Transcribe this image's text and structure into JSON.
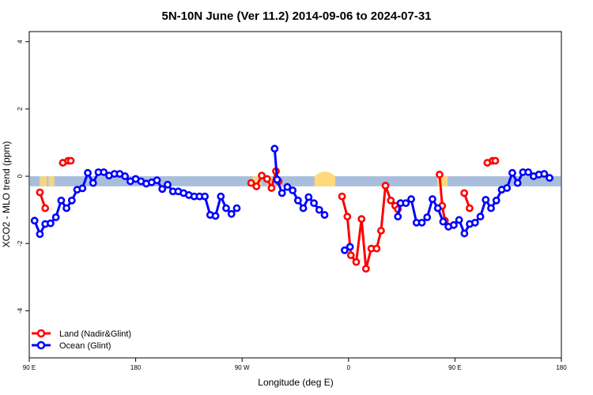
{
  "chart_data": {
    "type": "line",
    "title": "5N-10N June (Ver 11.2)   2014-09-06 to 2024-07-31",
    "xlabel": "Longitude (deg E)",
    "ylabel": "XCO2 - MLO trend (ppm)",
    "xlim": [
      90,
      450
    ],
    "ylim": [
      -5.4,
      4.3
    ],
    "x_ticks": [
      90,
      162,
      234,
      306,
      378,
      450
    ],
    "x_tick_labels": [
      "90 E",
      "180",
      "90 W",
      "0",
      "90 E",
      "180"
    ],
    "y_ticks": [
      -4,
      -2,
      0,
      2,
      4
    ],
    "y_tick_labels": [
      "-4",
      "-2",
      "0",
      "2",
      "4"
    ],
    "band": {
      "ymin": -0.3,
      "ymax": 0.0,
      "ocean_color": "#a8bedc",
      "land_color": "#ffd97a"
    },
    "land_band_ranges": [
      [
        97,
        102
      ],
      [
        103,
        107
      ],
      [
        241,
        247
      ],
      [
        251,
        254
      ],
      [
        283,
        297
      ],
      [
        366,
        373
      ],
      [
        366,
        370
      ],
      [
        372,
        373
      ],
      [
        458,
        461
      ]
    ],
    "legend": {
      "position": "bottom-left",
      "entries": [
        {
          "label": "Land (Nadir&Glint)",
          "color": "#ff0000"
        },
        {
          "label": "Ocean (Glint)",
          "color": "#0000ff"
        }
      ]
    },
    "series": [
      {
        "name": "Land (Nadir&Glint)",
        "color": "#ff0000",
        "segments": [
          [
            [
              97.2,
              -0.48
            ],
            [
              100.8,
              -0.95
            ]
          ],
          [
            [
              112.7,
              0.4
            ],
            [
              116.3,
              0.46
            ],
            [
              118.1,
              0.46
            ]
          ],
          [
            [
              240.1,
              -0.2
            ],
            [
              243.7,
              -0.3
            ],
            [
              247.3,
              0.02
            ],
            [
              250.9,
              -0.08
            ],
            [
              253.9,
              -0.35
            ],
            [
              256.9,
              0.15
            ],
            [
              258.7,
              -0.15
            ]
          ],
          [
            [
              301.6,
              -0.6
            ],
            [
              305.2,
              -1.2
            ],
            [
              307.6,
              -2.35
            ],
            [
              311.2,
              -2.55
            ],
            [
              314.8,
              -1.27
            ],
            [
              317.8,
              -2.75
            ],
            [
              321.4,
              -2.15
            ],
            [
              325.0,
              -2.15
            ],
            [
              328.0,
              -1.62
            ],
            [
              331.0,
              -0.28
            ],
            [
              334.6,
              -0.72
            ],
            [
              337.6,
              -0.88
            ],
            [
              339.4,
              -0.98
            ]
          ],
          [
            [
              367.6,
              0.05
            ],
            [
              369.4,
              -0.88
            ],
            [
              371.2,
              -1.32
            ]
          ],
          [
            [
              384.3,
              -0.5
            ],
            [
              387.9,
              -0.95
            ]
          ],
          [
            [
              399.9,
              0.4
            ],
            [
              403.5,
              0.46
            ],
            [
              405.3,
              0.46
            ]
          ]
        ]
      },
      {
        "name": "Ocean (Glint)",
        "color": "#0000ff",
        "segments": [
          [
            [
              93.6,
              -1.32
            ],
            [
              97.2,
              -1.72
            ],
            [
              100.8,
              -1.42
            ],
            [
              104.4,
              -1.4
            ],
            [
              108.0,
              -1.22
            ],
            [
              111.6,
              -0.72
            ],
            [
              115.2,
              -0.95
            ],
            [
              118.8,
              -0.72
            ],
            [
              122.4,
              -0.4
            ],
            [
              126.0,
              -0.36
            ],
            [
              129.6,
              0.1
            ],
            [
              133.2,
              -0.2
            ],
            [
              136.8,
              0.12
            ],
            [
              140.4,
              0.12
            ],
            [
              144.0,
              0.02
            ],
            [
              147.6,
              0.07
            ],
            [
              151.2,
              0.07
            ],
            [
              154.8,
              0.0
            ],
            [
              158.4,
              -0.15
            ],
            [
              162.0,
              -0.08
            ],
            [
              165.6,
              -0.15
            ],
            [
              169.2,
              -0.22
            ],
            [
              172.8,
              -0.18
            ],
            [
              176.4,
              -0.12
            ],
            [
              180.0,
              -0.38
            ],
            [
              183.6,
              -0.25
            ],
            [
              187.2,
              -0.45
            ],
            [
              190.8,
              -0.45
            ],
            [
              194.4,
              -0.5
            ],
            [
              198.0,
              -0.56
            ],
            [
              201.6,
              -0.6
            ],
            [
              205.2,
              -0.6
            ],
            [
              208.8,
              -0.6
            ],
            [
              212.4,
              -1.15
            ],
            [
              216.0,
              -1.18
            ],
            [
              219.6,
              -0.6
            ],
            [
              223.2,
              -0.95
            ],
            [
              226.8,
              -1.12
            ],
            [
              230.4,
              -0.95
            ]
          ],
          [
            [
              256.0,
              0.82
            ],
            [
              257.7,
              -0.1
            ],
            [
              261.0,
              -0.5
            ],
            [
              264.6,
              -0.32
            ],
            [
              268.2,
              -0.42
            ],
            [
              271.8,
              -0.72
            ],
            [
              275.4,
              -0.95
            ],
            [
              279.0,
              -0.62
            ],
            [
              282.6,
              -0.8
            ],
            [
              286.2,
              -1.0
            ],
            [
              289.8,
              -1.15
            ]
          ],
          [
            [
              303.4,
              -2.2
            ],
            [
              307.0,
              -2.1
            ]
          ],
          [
            [
              339.4,
              -1.2
            ],
            [
              341.2,
              -0.8
            ],
            [
              344.8,
              -0.8
            ],
            [
              348.4,
              -0.68
            ],
            [
              352.0,
              -1.38
            ],
            [
              355.6,
              -1.38
            ],
            [
              359.2,
              -1.22
            ],
            [
              362.8,
              -0.68
            ],
            [
              366.4,
              -0.95
            ],
            [
              370.0,
              -1.35
            ],
            [
              373.6,
              -1.5
            ],
            [
              377.2,
              -1.45
            ],
            [
              380.8,
              -1.3
            ],
            [
              384.4,
              -1.7
            ],
            [
              388.0,
              -1.42
            ],
            [
              391.6,
              -1.38
            ],
            [
              395.2,
              -1.2
            ],
            [
              398.8,
              -0.7
            ],
            [
              402.4,
              -0.95
            ],
            [
              406.0,
              -0.72
            ],
            [
              409.6,
              -0.4
            ],
            [
              413.2,
              -0.35
            ],
            [
              416.8,
              0.1
            ],
            [
              420.4,
              -0.2
            ],
            [
              424.0,
              0.12
            ],
            [
              427.6,
              0.12
            ],
            [
              431.2,
              0.0
            ],
            [
              434.8,
              0.05
            ],
            [
              438.4,
              0.07
            ],
            [
              442.0,
              -0.05
            ]
          ]
        ]
      }
    ]
  }
}
